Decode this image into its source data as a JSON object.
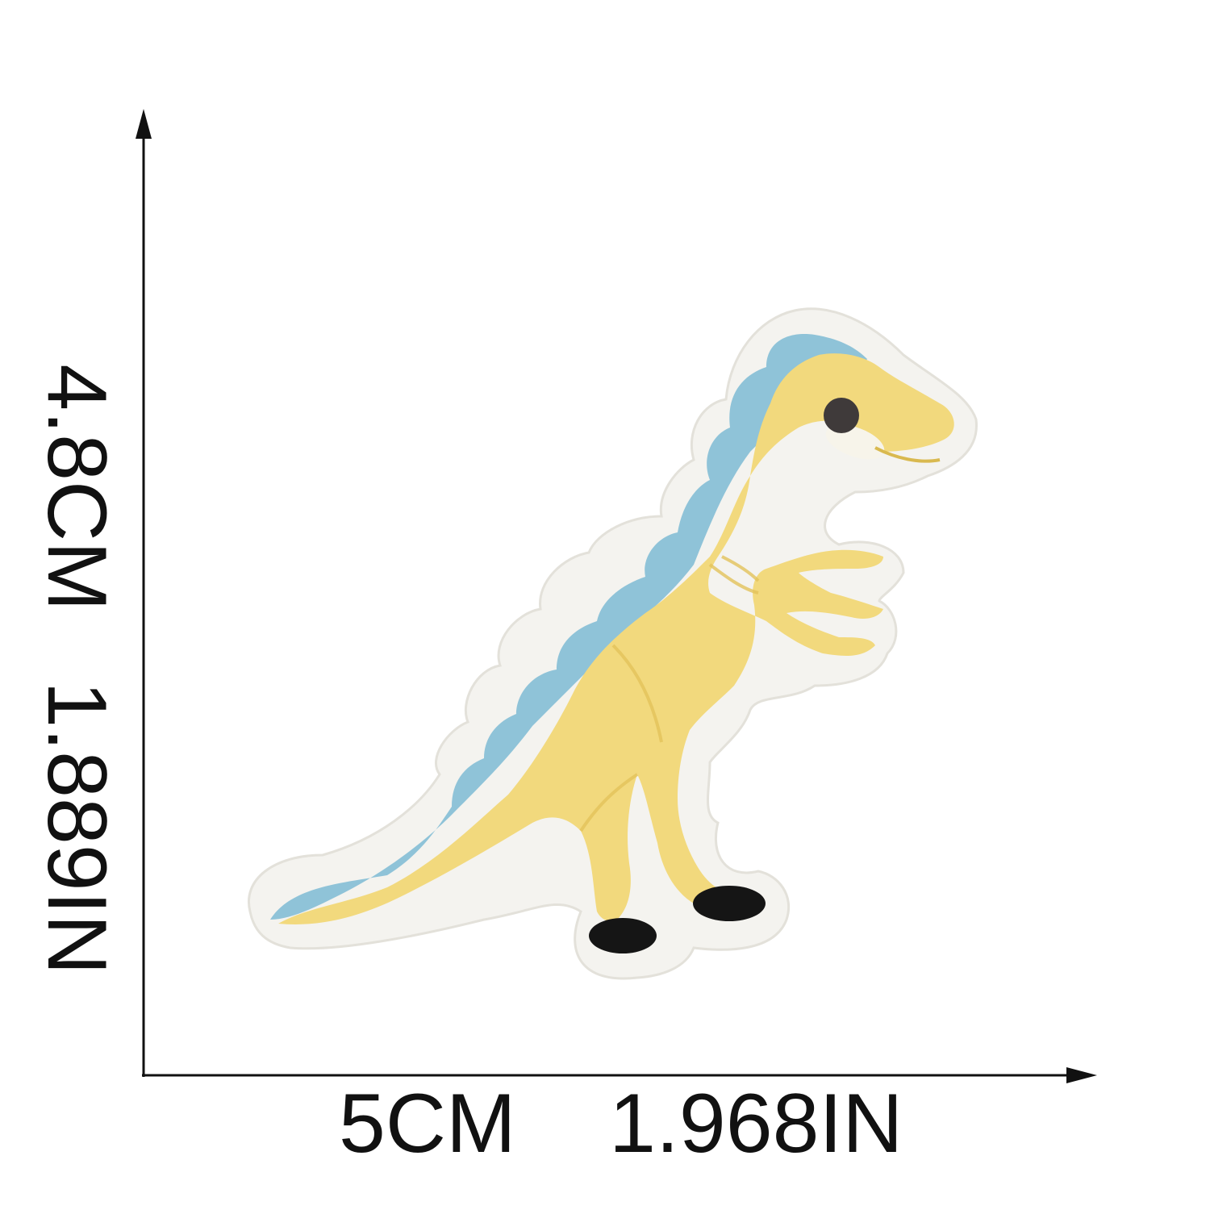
{
  "dimensions": {
    "height_label": "4.8CM   1.889IN",
    "width_label": "5CM    1.968IN"
  },
  "patch": {
    "subject": "dinosaur-patch",
    "colors": {
      "border": "#f4f3ef",
      "body": "#f2d97d",
      "body_shade": "#e8c65f",
      "spines": "#8fc3d8",
      "feet": "#151515",
      "eye": "#3f3a3a",
      "arrow": "#111111"
    }
  }
}
